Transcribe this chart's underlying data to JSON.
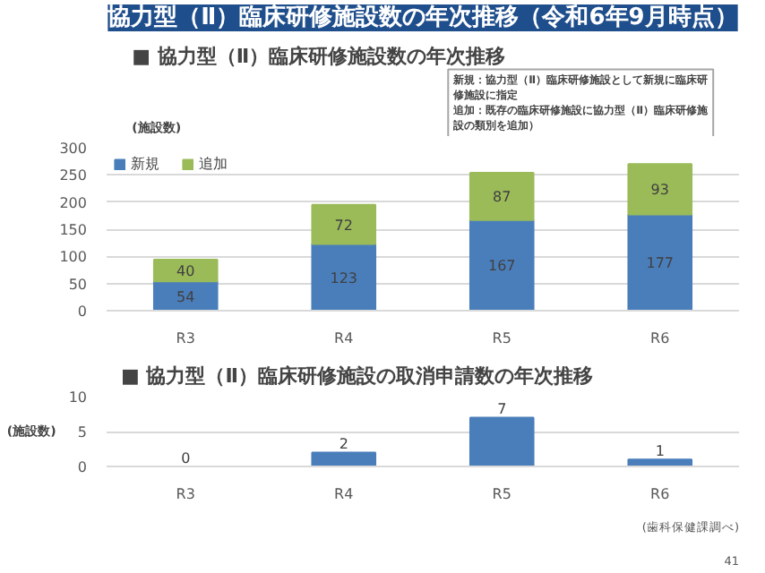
{
  "chart_data": [
    {
      "type": "bar",
      "title": "協力型（Ⅱ）臨床研修施設数の年次推移（令和6年9月時点）",
      "subtitle": "■ 協力型（Ⅱ）臨床研修施設数の年次推移",
      "ylabel": "(施設数)",
      "categories": [
        "R3",
        "R4",
        "R5",
        "R6"
      ],
      "stacked": true,
      "series": [
        {
          "name": "新規",
          "color": "#4a7ebb",
          "values": [
            54,
            123,
            167,
            177
          ]
        },
        {
          "name": "追加",
          "color": "#9bbb59",
          "values": [
            40,
            72,
            87,
            93
          ]
        }
      ],
      "ylim": [
        0,
        300
      ],
      "yticks": [
        0,
        50,
        100,
        150,
        200,
        250,
        300
      ],
      "grid": "y",
      "legend": "top left",
      "data_labels": true,
      "annotations": [
        "新規：協力型（Ⅱ）臨床研修施設として新規に臨床研修施設に指定",
        "追加：既存の臨床研修施設に協力型（Ⅱ）臨床研修施設の類別を追加）"
      ]
    },
    {
      "type": "bar",
      "title": "■ 協力型（Ⅱ）臨床研修施設の取消申請数の年次推移",
      "ylabel": "(施設数)",
      "categories": [
        "R3",
        "R4",
        "R5",
        "R6"
      ],
      "series": [
        {
          "color": "#4a7ebb",
          "values": [
            0,
            2,
            7,
            1
          ]
        }
      ],
      "ylim": [
        0,
        10
      ],
      "yticks": [
        0,
        5,
        10
      ],
      "grid": "y",
      "data_labels": true,
      "annotations": [
        "(歯科保健課調べ)",
        "41"
      ]
    }
  ]
}
